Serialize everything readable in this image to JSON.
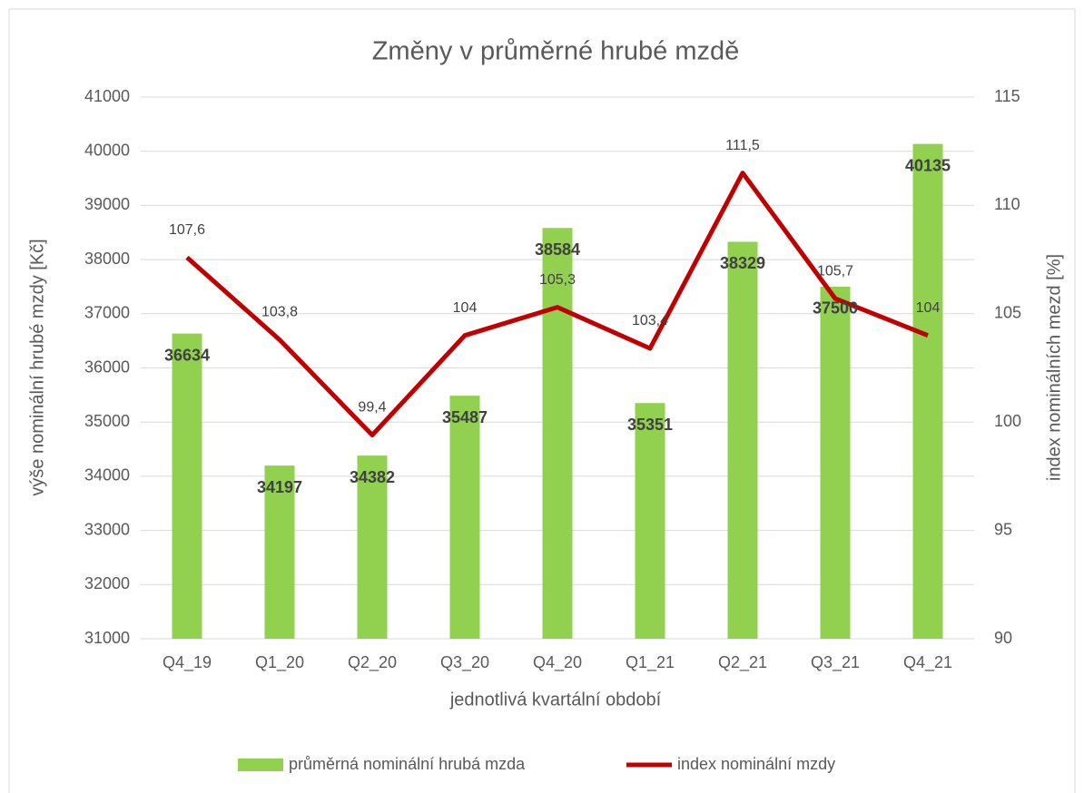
{
  "chart_data": {
    "type": "bar",
    "title": "Změny v průměrné hrubé mzdě",
    "x_label": "jednotlivá kvartální období",
    "y_label": "výše nominální hrubé mzdy [Kč]",
    "y2_label": "index nominálních mezd [%]",
    "categories": [
      "Q4_19",
      "Q1_20",
      "Q2_20",
      "Q3_20",
      "Q4_20",
      "Q1_21",
      "Q2_21",
      "Q3_21",
      "Q4_21"
    ],
    "series": [
      {
        "name": "průměrná nominální hrubá mzda",
        "type": "bar",
        "color": "#92d050",
        "values": [
          36634,
          34197,
          34382,
          35487,
          38584,
          35351,
          38329,
          37500,
          40135
        ]
      },
      {
        "name": "index nominální mzdy",
        "type": "line",
        "axis": "y2",
        "color": "#c00000",
        "values": [
          107.6,
          103.8,
          99.4,
          104,
          105.3,
          103.4,
          111.5,
          105.7,
          104
        ],
        "value_labels": [
          "107,6",
          "103,8",
          "99,4",
          "104",
          "105,3",
          "103,4",
          "111,5",
          "105,7",
          "104"
        ]
      }
    ],
    "ylim": [
      31000,
      41000
    ],
    "yticks": [
      31000,
      32000,
      33000,
      34000,
      35000,
      36000,
      37000,
      38000,
      39000,
      40000,
      41000
    ],
    "y2lim": [
      90,
      115
    ],
    "y2ticks": [
      90,
      95,
      100,
      105,
      110,
      115
    ],
    "grid": true,
    "legend": "bottom"
  }
}
